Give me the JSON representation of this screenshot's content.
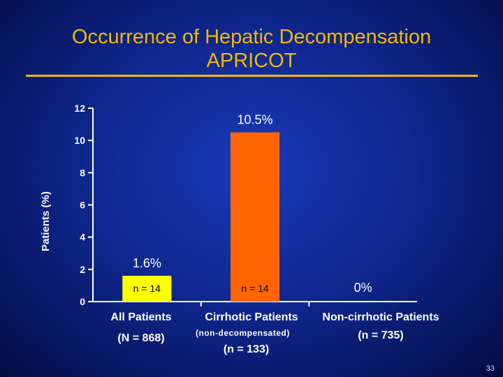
{
  "slide": {
    "title_line1": "Occurrence of Hepatic Decompensation",
    "title_line2": "APRICOT",
    "page_number": "33",
    "title_color": "#f5b800"
  },
  "chart_data": {
    "type": "bar",
    "ylabel": "Patients (%)",
    "ylim": [
      0,
      12
    ],
    "yticks": [
      0,
      2,
      4,
      6,
      8,
      10,
      12
    ],
    "categories": [
      "All Patients",
      "Cirrhotic Patients",
      "Non-cirrhotic Patients"
    ],
    "category_lines": [
      [
        "All Patients",
        "(N = 868)"
      ],
      [
        "Cirrhotic Patients",
        "(non-decompensated)",
        "(n = 133)"
      ],
      [
        "Non-cirrhotic Patients",
        "(n = 735)"
      ]
    ],
    "values": [
      1.6,
      10.5,
      0
    ],
    "value_labels": [
      "1.6%",
      "10.5%",
      "0%"
    ],
    "bar_labels": [
      "n = 14",
      "n = 14",
      ""
    ],
    "colors": [
      "#ffff00",
      "#ff6600",
      "#ffffff"
    ]
  }
}
